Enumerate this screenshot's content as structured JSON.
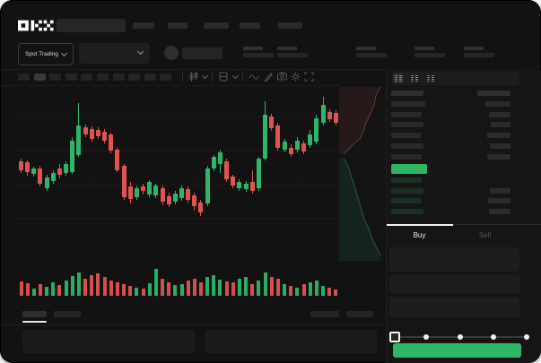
{
  "brand": {
    "logo": "OKX"
  },
  "colors": {
    "up": "#2eb56a",
    "down": "#dd5450",
    "cta_button": "#2eb866",
    "last_price_bar": "#2db564",
    "book_bid_tint": "#1c2f24",
    "book_gray_bar": "#2b2b2c"
  },
  "header": {
    "market_selector_label": "Spot Trading",
    "nav_placeholders": [
      24,
      22,
      28,
      23,
      27
    ],
    "search_placeholder": ""
  },
  "ticker_stats": {
    "placeholder_count": 5
  },
  "toolbar": {
    "timeframe_count": 10,
    "active_timeframe_index": 1,
    "icons": [
      "candle-style-icon",
      "chevron-down-icon",
      "chart-layout-icon",
      "chevron-down-icon",
      "line-wave-icon",
      "pencil-icon",
      "camera-icon",
      "gear-icon",
      "fullscreen-icon"
    ]
  },
  "chart_data": {
    "type": "candlestick",
    "title": "",
    "grid": {
      "h_lines": [
        35,
        73,
        110,
        148
      ],
      "v_lines": [
        85,
        200,
        315
      ]
    },
    "candle_format": "[dir(1=up,0=down), wickTop, bodyTop, bodyBottom, wickBottom] in 196px pane",
    "candles": [
      [
        0,
        82,
        85,
        95,
        98
      ],
      [
        0,
        84,
        86,
        97,
        101
      ],
      [
        1,
        91,
        93,
        99,
        102
      ],
      [
        0,
        90,
        93,
        110,
        113
      ],
      [
        1,
        100,
        103,
        115,
        118
      ],
      [
        1,
        95,
        98,
        107,
        110
      ],
      [
        0,
        88,
        93,
        100,
        104
      ],
      [
        1,
        85,
        88,
        98,
        101
      ],
      [
        1,
        58,
        62,
        97,
        99
      ],
      [
        1,
        20,
        45,
        78,
        80
      ],
      [
        0,
        44,
        47,
        55,
        58
      ],
      [
        0,
        46,
        49,
        60,
        63
      ],
      [
        0,
        47,
        50,
        57,
        60
      ],
      [
        0,
        49,
        52,
        62,
        65
      ],
      [
        0,
        53,
        55,
        73,
        76
      ],
      [
        0,
        70,
        72,
        95,
        97
      ],
      [
        0,
        88,
        90,
        125,
        128
      ],
      [
        0,
        108,
        113,
        127,
        132
      ],
      [
        1,
        112,
        115,
        125,
        128
      ],
      [
        0,
        110,
        113,
        118,
        122
      ],
      [
        1,
        106,
        108,
        122,
        125
      ],
      [
        1,
        110,
        112,
        123,
        126
      ],
      [
        0,
        112,
        115,
        130,
        134
      ],
      [
        0,
        120,
        124,
        133,
        136
      ],
      [
        1,
        118,
        121,
        130,
        133
      ],
      [
        1,
        112,
        115,
        126,
        129
      ],
      [
        0,
        113,
        116,
        128,
        131
      ],
      [
        0,
        120,
        123,
        135,
        140
      ],
      [
        0,
        128,
        131,
        142,
        146
      ],
      [
        1,
        90,
        93,
        132,
        135
      ],
      [
        1,
        78,
        80,
        93,
        96
      ],
      [
        1,
        72,
        75,
        88,
        98
      ],
      [
        0,
        82,
        85,
        105,
        108
      ],
      [
        0,
        100,
        102,
        112,
        115
      ],
      [
        1,
        105,
        108,
        115,
        118
      ],
      [
        1,
        107,
        110,
        116,
        119
      ],
      [
        0,
        95,
        108,
        118,
        121
      ],
      [
        1,
        80,
        82,
        115,
        118
      ],
      [
        1,
        18,
        33,
        82,
        84
      ],
      [
        0,
        32,
        35,
        48,
        51
      ],
      [
        0,
        42,
        45,
        70,
        73
      ],
      [
        1,
        60,
        63,
        72,
        75
      ],
      [
        0,
        66,
        70,
        77,
        80
      ],
      [
        1,
        58,
        62,
        72,
        75
      ],
      [
        0,
        62,
        65,
        74,
        77
      ],
      [
        1,
        50,
        55,
        67,
        70
      ],
      [
        1,
        33,
        37,
        63,
        66
      ],
      [
        1,
        13,
        22,
        42,
        45
      ],
      [
        0,
        27,
        30,
        38,
        41
      ],
      [
        0,
        28,
        31,
        42,
        45
      ]
    ],
    "volumes": [
      16,
      14,
      8,
      13,
      10,
      15,
      12,
      17,
      22,
      26,
      19,
      23,
      25,
      21,
      17,
      15,
      13,
      11,
      9,
      8,
      14,
      30,
      19,
      15,
      12,
      13,
      17,
      19,
      15,
      21,
      23,
      18,
      16,
      15,
      19,
      21,
      13,
      17,
      26,
      21,
      19,
      13,
      11,
      9,
      13,
      15,
      17,
      11,
      9,
      7
    ],
    "depth": {
      "asks_curve": "46,2 41,12 39,22 36,30 30,42 27,52 23,60 16,66 11,71 5,77",
      "bids_curve": "5,82 10,90 13,100 17,112 21,126 25,140 29,152 33,160 37,172 43,184 46,190"
    }
  },
  "order_book": {
    "toggle_views": [
      "book-both",
      "book-bids-only",
      "book-asks-only"
    ],
    "header_widths": [
      36,
      37
    ],
    "ask_rows": [
      [
        38,
        28
      ],
      [
        34,
        24
      ],
      [
        36,
        22
      ],
      [
        33,
        26
      ],
      [
        36,
        23
      ],
      [
        34,
        26
      ]
    ],
    "last_price_bar_width": 40,
    "bid_rows": [
      [
        34,
        0
      ],
      [
        36,
        23
      ],
      [
        33,
        25
      ],
      [
        36,
        24
      ]
    ]
  },
  "trade_panel": {
    "buy_label": "Buy",
    "sell_label": "Sell",
    "input_count": 3,
    "input_heights": [
      27,
      20,
      23
    ],
    "slider_stops": 5,
    "slider_value_index": 0
  },
  "bottom": {
    "tab_widths": [
      27,
      30
    ],
    "right_placeholder_widths": [
      32,
      30
    ],
    "panel_ranges": [
      [
        25,
        192
      ],
      [
        229,
        191
      ]
    ]
  }
}
